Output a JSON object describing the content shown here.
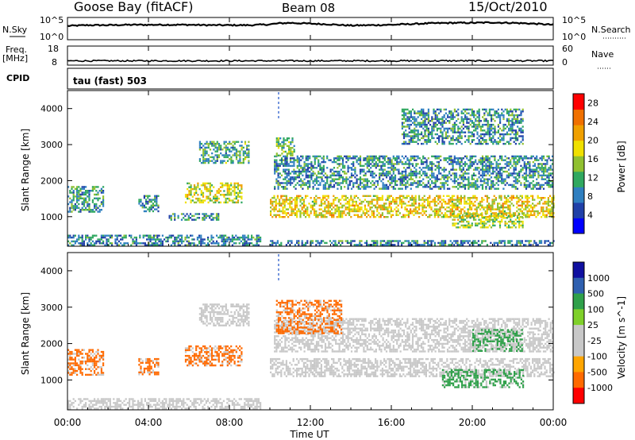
{
  "header": {
    "station": "Goose Bay (fitACF)",
    "beam": "Beam 08",
    "date": "15/Oct/2010"
  },
  "noise_panel": {
    "left_label": "N.Sky",
    "right_label": "N.Search",
    "left_ticks": [
      "10^5",
      "10^0"
    ],
    "right_ticks": [
      "10^5",
      "10^0"
    ]
  },
  "freq_panel": {
    "left_label_1": "Freq.",
    "left_label_2": "[MHz]",
    "right_label": "Nave",
    "left_ticks": [
      "18",
      "8"
    ],
    "right_ticks": [
      "60",
      "0"
    ]
  },
  "cpid": {
    "label": "CPID",
    "value": "tau (fast) 503"
  },
  "colors": {
    "power_scale": [
      "#0000ff",
      "#2040a8",
      "#2f7fc0",
      "#30a860",
      "#90c030",
      "#f0e000",
      "#f0a000",
      "#f07000",
      "#ff0000"
    ],
    "velocity_scale": [
      "#ff0000",
      "#ff6a00",
      "#ffa500",
      "#c8c8c8",
      "#c8c8c8",
      "#7fd02a",
      "#2fa04a",
      "#2f60b0",
      "#1010a0"
    ],
    "ground_scatter": "#c8c8c8"
  },
  "chart_data": [
    {
      "type": "line",
      "panel": "noise",
      "series": [
        {
          "name": "N.Sky",
          "x_hours": [
            0,
            1,
            2,
            3,
            4,
            5,
            6,
            7,
            8,
            9,
            10,
            10.5,
            11,
            12,
            13,
            14,
            15,
            16,
            17,
            18,
            19,
            20,
            21,
            22,
            23,
            24
          ],
          "values_log10": [
            3.2,
            3.4,
            3.4,
            3.5,
            3.5,
            3.5,
            3.5,
            3.4,
            3.4,
            3.4,
            3.6,
            3.9,
            4.0,
            3.8,
            3.6,
            3.3,
            3.4,
            3.5,
            3.7,
            3.9,
            4.0,
            4.0,
            4.1,
            4.0,
            3.8,
            3.5
          ]
        }
      ],
      "ylim_log10": [
        0,
        5
      ]
    },
    {
      "type": "line",
      "panel": "frequency",
      "series": [
        {
          "name": "Freq.",
          "x_hours": [
            0,
            24
          ],
          "values": [
            10,
            10
          ]
        }
      ],
      "ylim": [
        8,
        18
      ]
    },
    {
      "type": "heatmap",
      "panel": "power",
      "title": "Goose Bay (fitACF)",
      "xlabel": "",
      "ylabel": "Slant Range [km]",
      "xlim_hours": [
        0,
        24
      ],
      "ylim_km": [
        180,
        4500
      ],
      "x_ticks": [
        "00:00",
        "04:00",
        "08:00",
        "12:00",
        "16:00",
        "20:00",
        "00:00"
      ],
      "y_ticks": [
        1000,
        2000,
        3000,
        4000
      ],
      "colorbar_label": "Power [dB]",
      "colorbar_ticks": [
        4,
        8,
        12,
        16,
        20,
        24,
        28
      ],
      "colorbar_range": [
        0,
        30
      ],
      "regions": [
        {
          "t0": 0.0,
          "t1": 1.8,
          "r0": 1150,
          "r1": 1850,
          "value": 10
        },
        {
          "t0": 0.0,
          "t1": 9.5,
          "r0": 200,
          "r1": 500,
          "value": 8
        },
        {
          "t0": 3.5,
          "t1": 4.5,
          "r0": 1150,
          "r1": 1600,
          "value": 8
        },
        {
          "t0": 5.0,
          "t1": 7.5,
          "r0": 900,
          "r1": 1100,
          "value": 8
        },
        {
          "t0": 5.8,
          "t1": 8.6,
          "r0": 1400,
          "r1": 1950,
          "value": 17
        },
        {
          "t0": 6.5,
          "t1": 9.0,
          "r0": 2500,
          "r1": 3100,
          "value": 11
        },
        {
          "t0": 10.0,
          "t1": 24.0,
          "r0": 1000,
          "r1": 1600,
          "value": 19
        },
        {
          "t0": 10.2,
          "t1": 24.0,
          "r0": 1800,
          "r1": 2700,
          "value": 9
        },
        {
          "t0": 10.3,
          "t1": 11.2,
          "r0": 2700,
          "r1": 3200,
          "value": 14
        },
        {
          "t0": 19.0,
          "t1": 22.5,
          "r0": 700,
          "r1": 1100,
          "value": 16
        },
        {
          "t0": 16.5,
          "t1": 22.5,
          "r0": 3000,
          "r1": 4000,
          "value": 9
        },
        {
          "t0": 10.0,
          "t1": 24.0,
          "r0": 200,
          "r1": 350,
          "value": 8
        }
      ]
    },
    {
      "type": "heatmap",
      "panel": "velocity",
      "xlabel": "Time UT",
      "ylabel": "Slant Range [km]",
      "xlim_hours": [
        0,
        24
      ],
      "ylim_km": [
        180,
        4500
      ],
      "x_ticks": [
        "00:00",
        "04:00",
        "08:00",
        "12:00",
        "16:00",
        "20:00",
        "00:00"
      ],
      "y_ticks": [
        1000,
        2000,
        3000,
        4000
      ],
      "colorbar_label": "Velocity [m s^-1]",
      "colorbar_ticks": [
        "1000",
        "500",
        "100",
        "25",
        "-25",
        "-100",
        "-500",
        "-1000"
      ],
      "regions": [
        {
          "t0": 0.0,
          "t1": 1.8,
          "r0": 1150,
          "r1": 1850,
          "value": "-150"
        },
        {
          "t0": 0.0,
          "t1": 9.5,
          "r0": 200,
          "r1": 500,
          "value": "ground"
        },
        {
          "t0": 3.5,
          "t1": 4.5,
          "r0": 1150,
          "r1": 1600,
          "value": "-100"
        },
        {
          "t0": 5.8,
          "t1": 8.6,
          "r0": 1400,
          "r1": 1950,
          "value": "-300"
        },
        {
          "t0": 6.5,
          "t1": 9.0,
          "r0": 2500,
          "r1": 3100,
          "value": "ground"
        },
        {
          "t0": 10.0,
          "t1": 24.0,
          "r0": 1100,
          "r1": 1600,
          "value": "ground"
        },
        {
          "t0": 10.2,
          "t1": 24.0,
          "r0": 1800,
          "r1": 2700,
          "value": "ground"
        },
        {
          "t0": 10.3,
          "t1": 13.5,
          "r0": 2300,
          "r1": 3200,
          "value": "-300"
        },
        {
          "t0": 18.5,
          "t1": 22.5,
          "r0": 800,
          "r1": 1300,
          "value": "100"
        },
        {
          "t0": 20.0,
          "t1": 22.5,
          "r0": 1800,
          "r1": 2400,
          "value": "300"
        }
      ]
    }
  ]
}
